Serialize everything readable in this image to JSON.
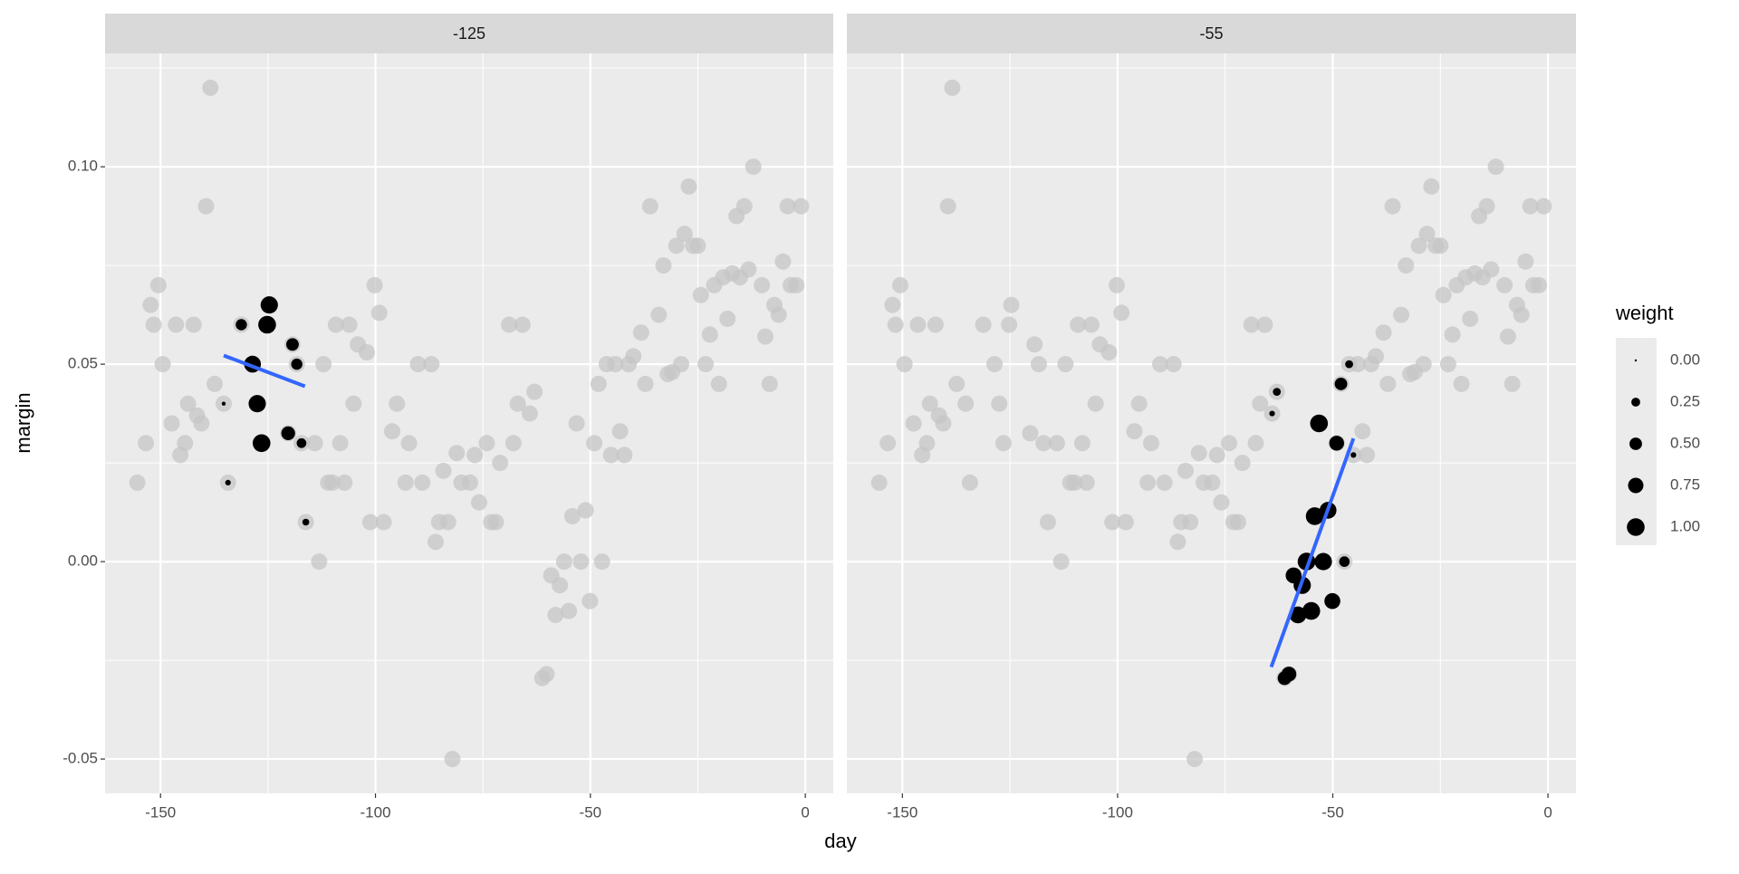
{
  "chart_data": {
    "type": "scatter",
    "x_label": "day",
    "y_label": "margin",
    "color": "#c6c6c6",
    "x": [
      -155.4,
      -153.4,
      -152.3,
      -151.6,
      -150.5,
      -149.5,
      -147.4,
      -146.4,
      -145.4,
      -144.3,
      -143.6,
      -142.3,
      -141.5,
      -140.5,
      -139.4,
      -138.4,
      -137.4,
      -135.3,
      -134.3,
      -131.2,
      -128.6,
      -127.5,
      -126.5,
      -125.2,
      -124.7,
      -120.3,
      -119.3,
      -118.3,
      -117.2,
      -116.2,
      -114.1,
      -113.1,
      -112.1,
      -111.0,
      -110.0,
      -109.2,
      -108.2,
      -107.2,
      -106.1,
      -105.1,
      -104.1,
      -102.0,
      -101.2,
      -100.2,
      -99.1,
      -98.1,
      -96.1,
      -95.0,
      -93.0,
      -92.2,
      -90.1,
      -89.1,
      -87.0,
      -86.0,
      -85.2,
      -84.2,
      -83.1,
      -82.1,
      -81.1,
      -80.0,
      -78.0,
      -76.9,
      -75.9,
      -74.1,
      -73.1,
      -72.0,
      -71.0,
      -68.9,
      -67.9,
      -66.9,
      -65.8,
      -64.1,
      -63.0,
      -61.2,
      -60.2,
      -59.1,
      -58.1,
      -57.1,
      -56.1,
      -55.0,
      -54.2,
      -53.2,
      -52.2,
      -51.1,
      -50.1,
      -49.1,
      -48.1,
      -47.3,
      -46.2,
      -45.2,
      -44.2,
      -43.1,
      -42.1,
      -41.1,
      -40.0,
      -38.2,
      -37.2,
      -36.1,
      -34.1,
      -33.0,
      -32.0,
      -31.0,
      -30.0,
      -28.9,
      -28.1,
      -27.1,
      -26.1,
      -25.0,
      -24.3,
      -23.2,
      -22.2,
      -21.2,
      -20.1,
      -19.1,
      -18.1,
      -17.0,
      -16.0,
      -15.2,
      -14.2,
      -13.2,
      -12.1,
      -10.1,
      -9.3,
      -8.3,
      -7.2,
      -6.2,
      -5.2,
      -4.1,
      -3.4,
      -2.1,
      -1.0
    ],
    "y": [
      0.02,
      0.03,
      0.065,
      0.06,
      0.07,
      0.05,
      0.035,
      0.06,
      0.027,
      0.03,
      0.04,
      0.06,
      0.037,
      0.035,
      0.09,
      0.12,
      0.045,
      0.04,
      0.02,
      0.06,
      0.05,
      0.04,
      0.03,
      0.06,
      0.065,
      0.0325,
      0.055,
      0.05,
      0.03,
      0.01,
      0.03,
      0.0,
      0.05,
      0.02,
      0.02,
      0.06,
      0.03,
      0.02,
      0.06,
      0.04,
      0.055,
      0.053,
      0.01,
      0.07,
      0.063,
      0.01,
      0.033,
      0.04,
      0.02,
      0.03,
      0.05,
      0.02,
      0.05,
      0.005,
      0.01,
      0.023,
      0.01,
      -0.05,
      0.0275,
      0.02,
      0.02,
      0.027,
      0.015,
      0.03,
      0.01,
      0.01,
      0.025,
      0.06,
      0.03,
      0.04,
      0.06,
      0.0375,
      0.043,
      -0.0295,
      -0.0285,
      -0.0035,
      -0.0135,
      -0.006,
      0.0,
      -0.0125,
      0.0115,
      0.035,
      0.0,
      0.013,
      -0.01,
      0.03,
      0.045,
      0.0,
      0.05,
      0.027,
      0.05,
      0.033,
      0.027,
      0.05,
      0.052,
      0.058,
      0.045,
      0.09,
      0.0625,
      0.075,
      0.0475,
      0.048,
      0.08,
      0.05,
      0.083,
      0.095,
      0.08,
      0.08,
      0.0675,
      0.05,
      0.0575,
      0.07,
      0.045,
      0.072,
      0.0615,
      0.073,
      0.0875,
      0.072,
      0.09,
      0.074,
      0.1,
      0.07,
      0.057,
      0.045,
      0.065,
      0.0625,
      0.076,
      0.09,
      0.07,
      0.07,
      0.09
    ],
    "panels": [
      {
        "title": "-125",
        "weighted": {
          "x": [
            -135.3,
            -134.3,
            -131.2,
            -128.6,
            -127.5,
            -126.5,
            -125.2,
            -124.7,
            -120.3,
            -119.3,
            -118.3,
            -117.2,
            -116.2
          ],
          "y": [
            0.04,
            0.02,
            0.06,
            0.05,
            0.04,
            0.03,
            0.06,
            0.065,
            0.0325,
            0.055,
            0.05,
            0.03,
            0.01
          ],
          "weight": [
            0.05,
            0.1,
            0.4,
            0.9,
            0.95,
            1.0,
            1.0,
            0.95,
            0.6,
            0.5,
            0.4,
            0.3,
            0.15
          ]
        },
        "fit": {
          "x": [
            -135.3,
            -116.4
          ],
          "y": [
            0.0522,
            0.0444
          ]
        }
      },
      {
        "title": "-55",
        "weighted": {
          "x": [
            -64.1,
            -63.0,
            -61.2,
            -60.2,
            -59.1,
            -58.1,
            -57.1,
            -56.1,
            -55.0,
            -54.2,
            -53.2,
            -52.2,
            -51.1,
            -50.1,
            -49.1,
            -48.1,
            -47.3,
            -46.2,
            -45.2
          ],
          "y": [
            0.0375,
            0.043,
            -0.0295,
            -0.0285,
            -0.0035,
            -0.0135,
            -0.006,
            0.0,
            -0.0125,
            0.0115,
            0.035,
            0.0,
            0.013,
            -0.01,
            0.03,
            0.045,
            0.0,
            0.05,
            0.027
          ],
          "weight": [
            0.1,
            0.2,
            0.6,
            0.7,
            0.8,
            0.9,
            0.95,
            1.0,
            1.0,
            1.0,
            1.0,
            0.95,
            0.9,
            0.8,
            0.7,
            0.5,
            0.35,
            0.2,
            0.1
          ]
        },
        "fit": {
          "x": [
            -64.3,
            -45.2
          ],
          "y": [
            -0.0267,
            0.0312
          ]
        }
      }
    ],
    "point_color": "#000000",
    "fit_color": "#3366ff",
    "legend": {
      "title": "weight",
      "values": [
        {
          "value": 0,
          "label": "0.00"
        },
        {
          "value": 0.25,
          "label": "0.25"
        },
        {
          "value": 0.5,
          "label": "0.50"
        },
        {
          "value": 0.75,
          "label": "0.75"
        },
        {
          "value": 1,
          "label": "1.00"
        }
      ]
    },
    "xlim": [
      -162.9,
      6.5
    ],
    "ylim": [
      -0.0587,
      0.1287
    ],
    "xticks": [
      -150,
      -100,
      -50,
      0
    ],
    "yticks": [
      {
        "value": 0.1,
        "label": "0.10"
      },
      {
        "value": 0.05,
        "label": "0.05"
      },
      {
        "value": 0,
        "label": "0.00"
      },
      {
        "value": -0.05,
        "label": "-0.05"
      }
    ],
    "grid": true
  }
}
